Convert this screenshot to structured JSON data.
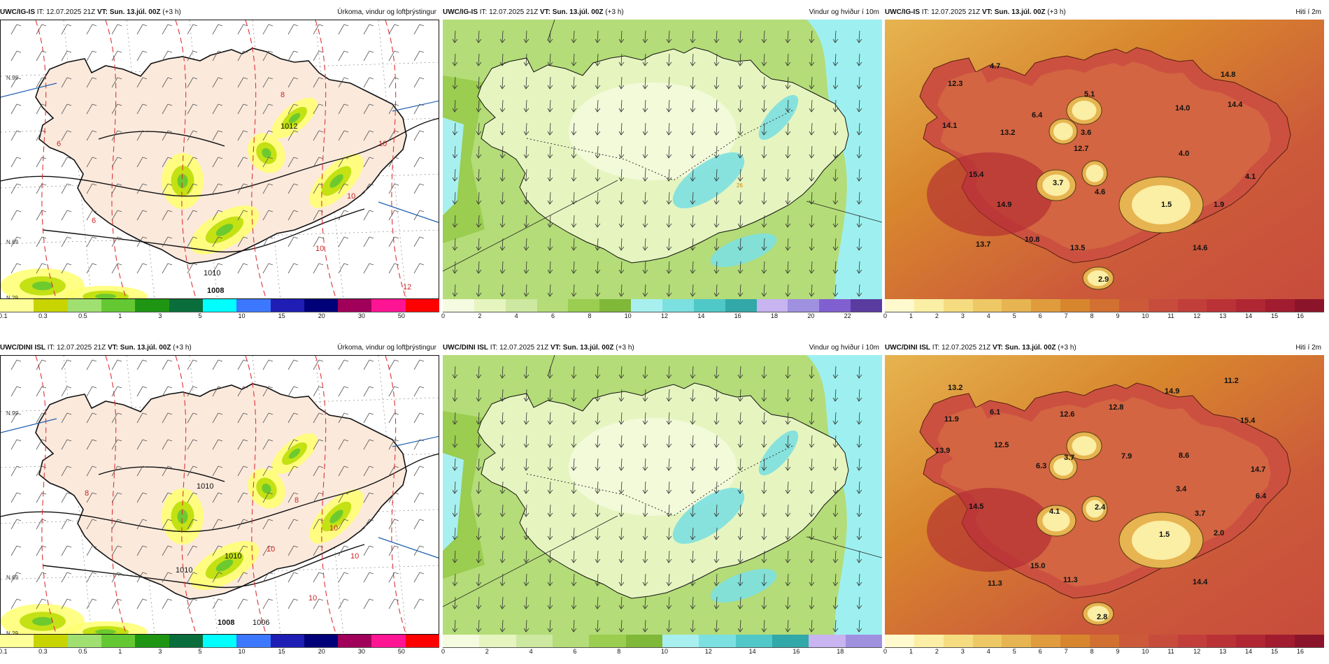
{
  "panels": [
    {
      "model": "UWC/IG-IS",
      "it": "IT: 12.07.2025 21Z",
      "vt": "VT: Sun. 13.júl. 00Z",
      "lead": "(+3 h)",
      "title": "Úrkoma, vindur og loftþrýstingur",
      "map_labels": [
        "8",
        "6",
        "10",
        "10",
        "10",
        "6",
        "12",
        "1008",
        "1012",
        "1010",
        "N.99",
        "N.69",
        "N.29"
      ],
      "colorbar": {
        "colors": [
          "#ffff99",
          "#c8d400",
          "#a0e070",
          "#64c832",
          "#1e9614",
          "#0a6e3c",
          "#00ffff",
          "#3c78ff",
          "#1e1eb4",
          "#000078",
          "#a0005a",
          "#ff1493",
          "#ff0000"
        ],
        "ticks": [
          "0.1",
          "0.3",
          "0.5",
          "1",
          "3",
          "5",
          "10",
          "15",
          "20",
          "30",
          "50"
        ]
      }
    },
    {
      "model": "UWC/IG-IS",
      "it": "IT: 12.07.2025 21Z",
      "vt": "VT: Sun. 13.júl. 00Z",
      "lead": "(+3 h)",
      "title": "Vindur og hviður í 10m",
      "map_labels": [
        "26"
      ],
      "colorbar": {
        "colors": [
          "#f5fbe0",
          "#e6f5c0",
          "#cde8a0",
          "#b4dc78",
          "#9acd50",
          "#80b83a",
          "#a8f0f0",
          "#7ce0e0",
          "#50c8c8",
          "#32a8a8",
          "#c8b4f0",
          "#a090e0",
          "#8060d0",
          "#5a3ca0"
        ],
        "ticks": [
          "0",
          "2",
          "4",
          "6",
          "8",
          "10",
          "12",
          "14",
          "16",
          "18",
          "20",
          "22"
        ]
      }
    },
    {
      "model": "UWC/IG-IS",
      "it": "IT: 12.07.2025 21Z",
      "vt": "VT: Sun. 13.júl. 00Z",
      "lead": "(+3 h)",
      "title": "Hiti í 2m",
      "map_labels": [
        {
          "t": "4.7"
        },
        {
          "t": "12.3"
        },
        {
          "t": "14.1"
        },
        {
          "t": "13.2"
        },
        {
          "t": "6.4"
        },
        {
          "t": "5.1"
        },
        {
          "t": "3.6"
        },
        {
          "t": "14.8"
        },
        {
          "t": "14.0"
        },
        {
          "t": "14.4"
        },
        {
          "t": "12.7"
        },
        {
          "t": "4.0"
        },
        {
          "t": "15.4"
        },
        {
          "t": "3.7"
        },
        {
          "t": "4.6"
        },
        {
          "t": "4.1"
        },
        {
          "t": "1.5"
        },
        {
          "t": "1.9"
        },
        {
          "t": "14.9"
        },
        {
          "t": "10.8"
        },
        {
          "t": "13.7"
        },
        {
          "t": "13.5"
        },
        {
          "t": "14.6"
        },
        {
          "t": "2.9"
        }
      ],
      "colorbar": {
        "colors": [
          "#fffacd",
          "#fbeea5",
          "#f5dc80",
          "#eec864",
          "#e6b450",
          "#e09c3c",
          "#d8862e",
          "#d27032",
          "#cc5a3a",
          "#c84c3c",
          "#c23e3a",
          "#ba3236",
          "#b02632",
          "#a01c2e",
          "#8c142a"
        ],
        "ticks": [
          "0",
          "1",
          "2",
          "3",
          "4",
          "5",
          "6",
          "7",
          "8",
          "9",
          "10",
          "11",
          "12",
          "13",
          "14",
          "15",
          "16"
        ]
      }
    },
    {
      "model": "UWC/DINI ISL",
      "it": "IT: 12.07.2025 21Z",
      "vt": "VT: Sun. 13.júl. 00Z",
      "lead": "(+3 h)",
      "title": "Úrkoma, vindur og loftþrýstingur",
      "map_labels": [
        "8",
        "10",
        "10",
        "10",
        "10",
        "8",
        "1010",
        "1010",
        "1010",
        "1008",
        "1006",
        "N.99",
        "N.69",
        "N.29"
      ],
      "colorbar": {
        "colors": [
          "#ffff99",
          "#c8d400",
          "#a0e070",
          "#64c832",
          "#1e9614",
          "#0a6e3c",
          "#00ffff",
          "#3c78ff",
          "#1e1eb4",
          "#000078",
          "#a0005a",
          "#ff1493",
          "#ff0000"
        ],
        "ticks": [
          "0.1",
          "0.3",
          "0.5",
          "1",
          "3",
          "5",
          "10",
          "15",
          "20",
          "30",
          "50"
        ]
      }
    },
    {
      "model": "UWC/DINI ISL",
      "it": "IT: 12.07.2025 21Z",
      "vt": "VT: Sun. 13.júl. 00Z",
      "lead": "(+3 h)",
      "title": "Vindur og hviður í 10m",
      "map_labels": [],
      "colorbar": {
        "colors": [
          "#f5fbe0",
          "#e6f5c0",
          "#cde8a0",
          "#b4dc78",
          "#9acd50",
          "#80b83a",
          "#a8f0f0",
          "#7ce0e0",
          "#50c8c8",
          "#32a8a8",
          "#c8b4f0",
          "#a090e0"
        ],
        "ticks": [
          "0",
          "2",
          "4",
          "6",
          "8",
          "10",
          "12",
          "14",
          "16",
          "18"
        ]
      }
    },
    {
      "model": "UWC/DINI ISL",
      "it": "IT: 12.07.2025 21Z",
      "vt": "VT: Sun. 13.júl. 00Z",
      "lead": "(+3 h)",
      "title": "Hiti í 2m",
      "map_labels": [
        {
          "t": "13.2"
        },
        {
          "t": "11.9"
        },
        {
          "t": "6.1"
        },
        {
          "t": "12.6"
        },
        {
          "t": "12.8"
        },
        {
          "t": "14.9"
        },
        {
          "t": "11.2"
        },
        {
          "t": "13.9"
        },
        {
          "t": "12.5"
        },
        {
          "t": "7.9"
        },
        {
          "t": "8.6"
        },
        {
          "t": "15.4"
        },
        {
          "t": "6.3"
        },
        {
          "t": "3.7"
        },
        {
          "t": "14.7"
        },
        {
          "t": "3.4"
        },
        {
          "t": "6.4"
        },
        {
          "t": "14.5"
        },
        {
          "t": "4.1"
        },
        {
          "t": "2.4"
        },
        {
          "t": "3.7"
        },
        {
          "t": "1.5"
        },
        {
          "t": "2.0"
        },
        {
          "t": "15.0"
        },
        {
          "t": "11.3"
        },
        {
          "t": "11.3"
        },
        {
          "t": "14.4"
        },
        {
          "t": "2.8"
        }
      ],
      "colorbar": {
        "colors": [
          "#fffacd",
          "#fbeea5",
          "#f5dc80",
          "#eec864",
          "#e6b450",
          "#e09c3c",
          "#d8862e",
          "#d27032",
          "#cc5a3a",
          "#c84c3c",
          "#c23e3a",
          "#ba3236",
          "#b02632",
          "#a01c2e",
          "#8c142a"
        ],
        "ticks": [
          "0",
          "1",
          "2",
          "3",
          "4",
          "5",
          "6",
          "7",
          "8",
          "9",
          "10",
          "11",
          "12",
          "13",
          "14",
          "15",
          "16"
        ]
      }
    }
  ]
}
